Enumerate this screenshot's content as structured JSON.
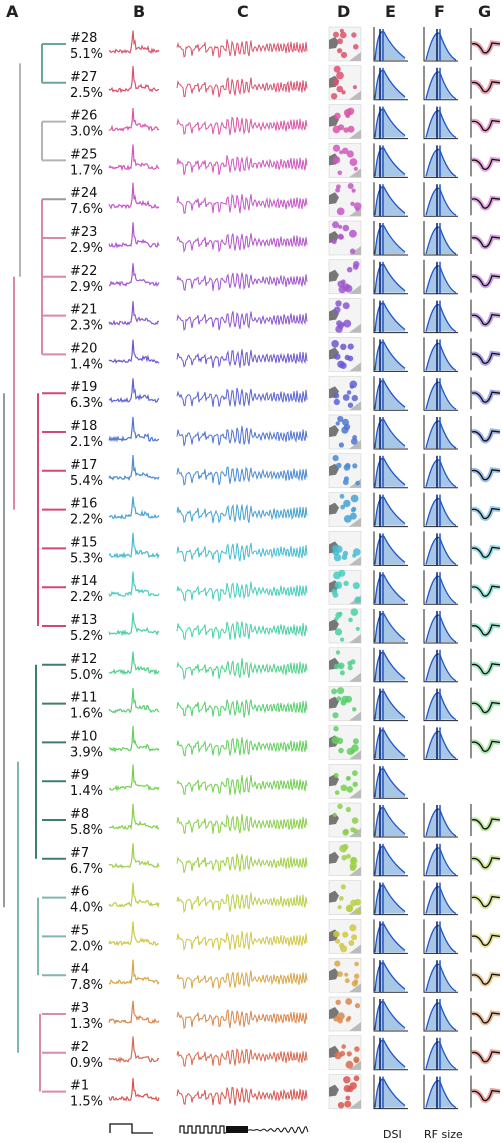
{
  "panels": {
    "a": "A",
    "b": "B",
    "c": "C",
    "d": "D",
    "e": "E",
    "f": "F",
    "g": "G"
  },
  "axis_labels": {
    "e": "DSI",
    "f": "RF size"
  },
  "clusters": [
    {
      "id": "#28",
      "pct": "5.1%",
      "color": "#d9536a",
      "bar": "#6aa69a",
      "hasG": true,
      "hasF": true
    },
    {
      "id": "#27",
      "pct": "2.5%",
      "color": "#d9516f",
      "bar": "#6aa69a",
      "hasG": true,
      "hasF": true
    },
    {
      "id": "#26",
      "pct": "3.0%",
      "color": "#d856a8",
      "bar": "#b4b4b4",
      "hasG": true,
      "hasF": true
    },
    {
      "id": "#25",
      "pct": "1.7%",
      "color": "#d057c0",
      "bar": "#b4b4b4",
      "hasG": true,
      "hasF": true
    },
    {
      "id": "#24",
      "pct": "7.6%",
      "color": "#c457c8",
      "bar": "#9a9a9a",
      "hasG": true,
      "hasF": true
    },
    {
      "id": "#23",
      "pct": "2.9%",
      "color": "#b455cc",
      "bar": "#de86a5",
      "hasG": true,
      "hasF": true
    },
    {
      "id": "#22",
      "pct": "2.9%",
      "color": "#a056cf",
      "bar": "#de86a5",
      "hasG": true,
      "hasF": true
    },
    {
      "id": "#21",
      "pct": "2.3%",
      "color": "#8a56d0",
      "bar": "#de86a5",
      "hasG": true,
      "hasF": true
    },
    {
      "id": "#20",
      "pct": "1.4%",
      "color": "#6c57d2",
      "bar": "#de86a5",
      "hasG": true,
      "hasF": true
    },
    {
      "id": "#19",
      "pct": "6.3%",
      "color": "#5a63d4",
      "bar": "#d4467a",
      "hasG": true,
      "hasF": true
    },
    {
      "id": "#18",
      "pct": "2.1%",
      "color": "#4f74d4",
      "bar": "#d4467a",
      "hasG": true,
      "hasF": true
    },
    {
      "id": "#17",
      "pct": "5.4%",
      "color": "#4a8ad4",
      "bar": "#d4467a",
      "hasG": true,
      "hasF": true
    },
    {
      "id": "#16",
      "pct": "2.2%",
      "color": "#45a2d4",
      "bar": "#d4467a",
      "hasG": true,
      "hasF": true
    },
    {
      "id": "#15",
      "pct": "5.3%",
      "color": "#45bcd2",
      "bar": "#d4467a",
      "hasG": true,
      "hasF": true
    },
    {
      "id": "#14",
      "pct": "2.2%",
      "color": "#45cdbe",
      "bar": "#d4467a",
      "hasG": true,
      "hasF": true
    },
    {
      "id": "#13",
      "pct": "5.2%",
      "color": "#48d0a6",
      "bar": "#d4467a",
      "hasG": true,
      "hasF": true
    },
    {
      "id": "#12",
      "pct": "5.0%",
      "color": "#4fd08b",
      "bar": "#3f7d72",
      "hasG": true,
      "hasF": true
    },
    {
      "id": "#11",
      "pct": "1.6%",
      "color": "#58cf6e",
      "bar": "#3f7d72",
      "hasG": true,
      "hasF": true
    },
    {
      "id": "#10",
      "pct": "3.9%",
      "color": "#62cf5e",
      "bar": "#3f7d72",
      "hasG": true,
      "hasF": true
    },
    {
      "id": "#9",
      "pct": "1.4%",
      "color": "#72d04f",
      "bar": "#3f7d72",
      "hasG": false,
      "hasF": false
    },
    {
      "id": "#8",
      "pct": "5.8%",
      "color": "#89d04a",
      "bar": "#3f7d72",
      "hasG": true,
      "hasF": true
    },
    {
      "id": "#7",
      "pct": "6.7%",
      "color": "#a0cf48",
      "bar": "#3f7d72",
      "hasG": true,
      "hasF": true
    },
    {
      "id": "#6",
      "pct": "4.0%",
      "color": "#b9cf47",
      "bar": "#7fb6ad",
      "hasG": true,
      "hasF": true
    },
    {
      "id": "#5",
      "pct": "2.0%",
      "color": "#d0c845",
      "bar": "#7fb6ad",
      "hasG": true,
      "hasF": true
    },
    {
      "id": "#4",
      "pct": "7.8%",
      "color": "#d8a647",
      "bar": "#7fb6ad",
      "hasG": true,
      "hasF": true
    },
    {
      "id": "#3",
      "pct": "1.3%",
      "color": "#d9864c",
      "bar": "#d98aa5",
      "hasG": true,
      "hasF": true
    },
    {
      "id": "#2",
      "pct": "0.9%",
      "color": "#d86a4e",
      "bar": "#d98aa5",
      "hasG": true,
      "hasF": true
    },
    {
      "id": "#1",
      "pct": "1.5%",
      "color": "#d85550",
      "bar": "#d98aa5",
      "hasG": true,
      "hasF": true
    }
  ],
  "colors": {
    "fit": "#1f56c8",
    "fill": "#a8c6e6",
    "mark": "#0a1a5a",
    "dgray": "#777777"
  }
}
